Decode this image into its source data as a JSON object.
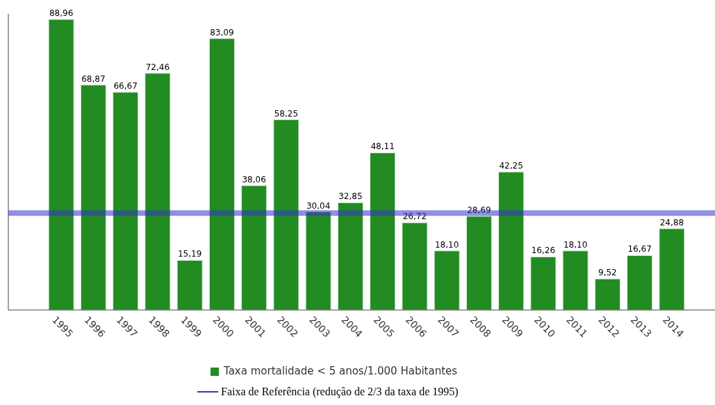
{
  "chart_data": {
    "type": "bar",
    "categories": [
      "1995",
      "1996",
      "1997",
      "1998",
      "1999",
      "2000",
      "2001",
      "2002",
      "2003",
      "2004",
      "2005",
      "2006",
      "2007",
      "2008",
      "2009",
      "2010",
      "2011",
      "2012",
      "2013",
      "2014"
    ],
    "series": [
      {
        "name": "Taxa mortalidade < 5 anos/1.000 Habitantes",
        "color": "#228b22",
        "values": [
          88.96,
          68.87,
          66.67,
          72.46,
          15.19,
          83.09,
          38.06,
          58.25,
          30.04,
          32.85,
          48.11,
          26.72,
          18.1,
          28.69,
          42.25,
          16.26,
          18.1,
          9.52,
          16.67,
          24.88
        ],
        "value_labels": [
          "88,96",
          "68,87",
          "66,67",
          "72,46",
          "15,19",
          "83,09",
          "38,06",
          "58,25",
          "30,04",
          "32,85",
          "48,11",
          "26,72",
          "18,10",
          "28,69",
          "42,25",
          "16,26",
          "18,10",
          "9,52",
          "16,67",
          "24,88"
        ]
      }
    ],
    "tick_labels": "x",
    "ref_lines": [
      {
        "axis": "y",
        "value": 29.65,
        "label": "Faixa de Referência (redução de 2/3 da taxa de 1995)",
        "color": "#3333cc"
      }
    ],
    "legend": "bottom"
  }
}
